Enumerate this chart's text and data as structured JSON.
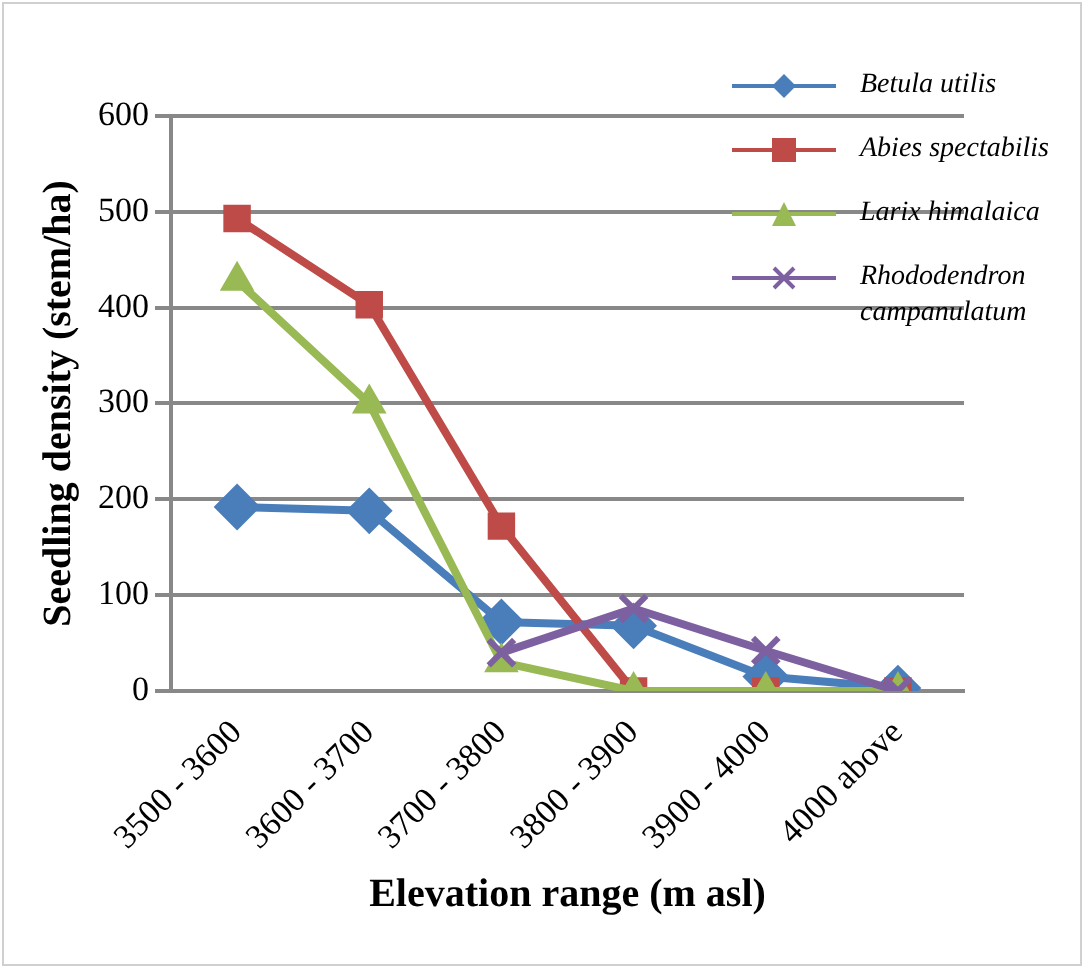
{
  "chart_data": {
    "type": "line",
    "xlabel": "Elevation range (m asl)",
    "ylabel": "Seedling density (stem/ha)",
    "categories": [
      "3500 - 3600",
      "3600 - 3700",
      "3700 - 3800",
      "3800 - 3900",
      "3900 - 4000",
      "4000 above"
    ],
    "series": [
      {
        "name": "Betula utilis",
        "color": "#4a7ebb",
        "marker": "diamond",
        "values": [
          192,
          188,
          72,
          68,
          15,
          3
        ]
      },
      {
        "name": "Abies spectabilis",
        "color": "#be4b48",
        "marker": "square",
        "values": [
          493,
          403,
          172,
          0,
          0,
          0
        ]
      },
      {
        "name": "Larix himalaica",
        "color": "#98b954",
        "marker": "triangle",
        "values": [
          428,
          300,
          30,
          0,
          0,
          0
        ]
      },
      {
        "name": "Rhododendron campanulatum",
        "color": "#7d60a0",
        "marker": "cross",
        "values": [
          null,
          null,
          40,
          86,
          42,
          0
        ]
      }
    ],
    "ylim": [
      0,
      600
    ],
    "yticks": [
      0,
      100,
      200,
      300,
      400,
      500,
      600
    ],
    "grid": "y",
    "legend": "right",
    "line_style": "solid"
  }
}
